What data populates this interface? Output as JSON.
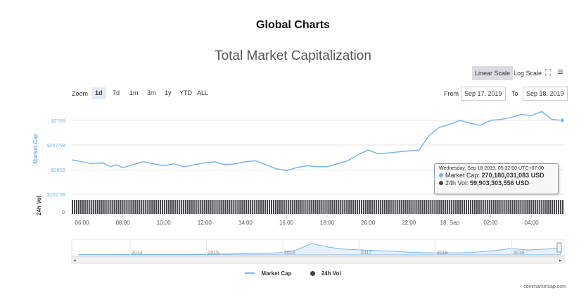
{
  "page": {
    "title": "Global Charts",
    "credits": "coinmarketcap.com"
  },
  "controls": {
    "scale_buttons": [
      {
        "label": "Linear Scale",
        "active": true
      },
      {
        "label": "Log Scale",
        "active": false
      }
    ],
    "fullscreen_icon": "fullscreen-icon",
    "menu_icon": "hamburger-menu-icon",
    "zoom_label": "Zoom",
    "zoom_buttons": [
      {
        "label": "1d",
        "active": true
      },
      {
        "label": "7d",
        "active": false
      },
      {
        "label": "1m",
        "active": false
      },
      {
        "label": "3m",
        "active": false
      },
      {
        "label": "1y",
        "active": false
      },
      {
        "label": "YTD",
        "active": false
      },
      {
        "label": "ALL",
        "active": false
      }
    ],
    "from_label": "From",
    "from_value": "Sep 17, 2019",
    "to_label": "To",
    "to_value": "Sep 18, 2019"
  },
  "tooltip": {
    "date": "Wednesday, Sep 18 2019, 05:32:00 UTC+07:00",
    "market_cap_label": "Market Cap:",
    "market_cap_value": "270,180,031,083 USD",
    "vol_label": "24h Vol:",
    "vol_value": "59,903,303,556 USD"
  },
  "chart_data": {
    "type": "line",
    "title": "Total Market Capitalization",
    "ylabel": "Market Cap",
    "y_ticks": [
      {
        "value": 262.5,
        "label": "$262.5B"
      },
      {
        "value": 265,
        "label": "$265B"
      },
      {
        "value": 267.5,
        "label": "$267.5B"
      },
      {
        "value": 270,
        "label": "$270B"
      }
    ],
    "ylim": [
      262.5,
      271.5
    ],
    "x_hours_range": [
      5.5,
      29.6
    ],
    "x_ticks": [
      {
        "value": 6,
        "label": "06:00"
      },
      {
        "value": 8,
        "label": "08:00"
      },
      {
        "value": 10,
        "label": "10:00"
      },
      {
        "value": 12,
        "label": "12:00"
      },
      {
        "value": 14,
        "label": "14:00"
      },
      {
        "value": 16,
        "label": "16:00"
      },
      {
        "value": 18,
        "label": "18:00"
      },
      {
        "value": 20,
        "label": "20:00"
      },
      {
        "value": 22,
        "label": "22:00"
      },
      {
        "value": 24,
        "label": "18. Sep"
      },
      {
        "value": 26,
        "label": "02:00"
      },
      {
        "value": 28,
        "label": "04:00"
      }
    ],
    "series": [
      {
        "name": "Market Cap",
        "color": "#7cb5ec",
        "points": [
          [
            5.5,
            266.0
          ],
          [
            6.0,
            265.8
          ],
          [
            6.5,
            265.6
          ],
          [
            7.0,
            265.7
          ],
          [
            7.4,
            265.3
          ],
          [
            7.7,
            265.5
          ],
          [
            8.0,
            265.2
          ],
          [
            8.5,
            265.5
          ],
          [
            9.0,
            265.8
          ],
          [
            9.5,
            265.6
          ],
          [
            10.0,
            265.4
          ],
          [
            10.5,
            265.6
          ],
          [
            11.0,
            265.3
          ],
          [
            11.5,
            265.5
          ],
          [
            12.0,
            265.7
          ],
          [
            12.5,
            265.8
          ],
          [
            13.0,
            265.5
          ],
          [
            13.5,
            265.6
          ],
          [
            14.0,
            265.8
          ],
          [
            14.5,
            265.9
          ],
          [
            15.0,
            265.5
          ],
          [
            15.5,
            265.1
          ],
          [
            16.0,
            264.9
          ],
          [
            16.5,
            265.2
          ],
          [
            17.0,
            265.4
          ],
          [
            17.5,
            265.3
          ],
          [
            18.0,
            265.3
          ],
          [
            18.5,
            265.6
          ],
          [
            19.0,
            265.9
          ],
          [
            19.5,
            266.5
          ],
          [
            20.0,
            267.0
          ],
          [
            20.5,
            266.6
          ],
          [
            21.0,
            266.7
          ],
          [
            21.5,
            266.8
          ],
          [
            22.0,
            266.9
          ],
          [
            22.5,
            267.0
          ],
          [
            23.0,
            268.5
          ],
          [
            23.5,
            269.3
          ],
          [
            24.0,
            269.6
          ],
          [
            24.5,
            270.0
          ],
          [
            25.0,
            269.7
          ],
          [
            25.5,
            269.5
          ],
          [
            26.0,
            270.0
          ],
          [
            26.5,
            270.1
          ],
          [
            27.0,
            270.3
          ],
          [
            27.5,
            270.6
          ],
          [
            28.0,
            270.5
          ],
          [
            28.5,
            270.9
          ],
          [
            29.0,
            270.1
          ],
          [
            29.5,
            270.0
          ]
        ]
      },
      {
        "name": "24h Vol",
        "color": "#434348",
        "ylabel": "24h Vol",
        "y_tick_label": "0",
        "bar_count": 235,
        "relative_level": 0.95
      }
    ],
    "navigator": {
      "year_labels": [
        "2014",
        "2015",
        "2016",
        "2017",
        "2018",
        "2019"
      ],
      "left_arrow": "◂",
      "right_arrow": "▸"
    },
    "legend": [
      {
        "name": "Market Cap",
        "color": "#7cb5ec",
        "symbol": "line"
      },
      {
        "name": "24h Vol",
        "color": "#434348",
        "symbol": "circle"
      }
    ]
  }
}
